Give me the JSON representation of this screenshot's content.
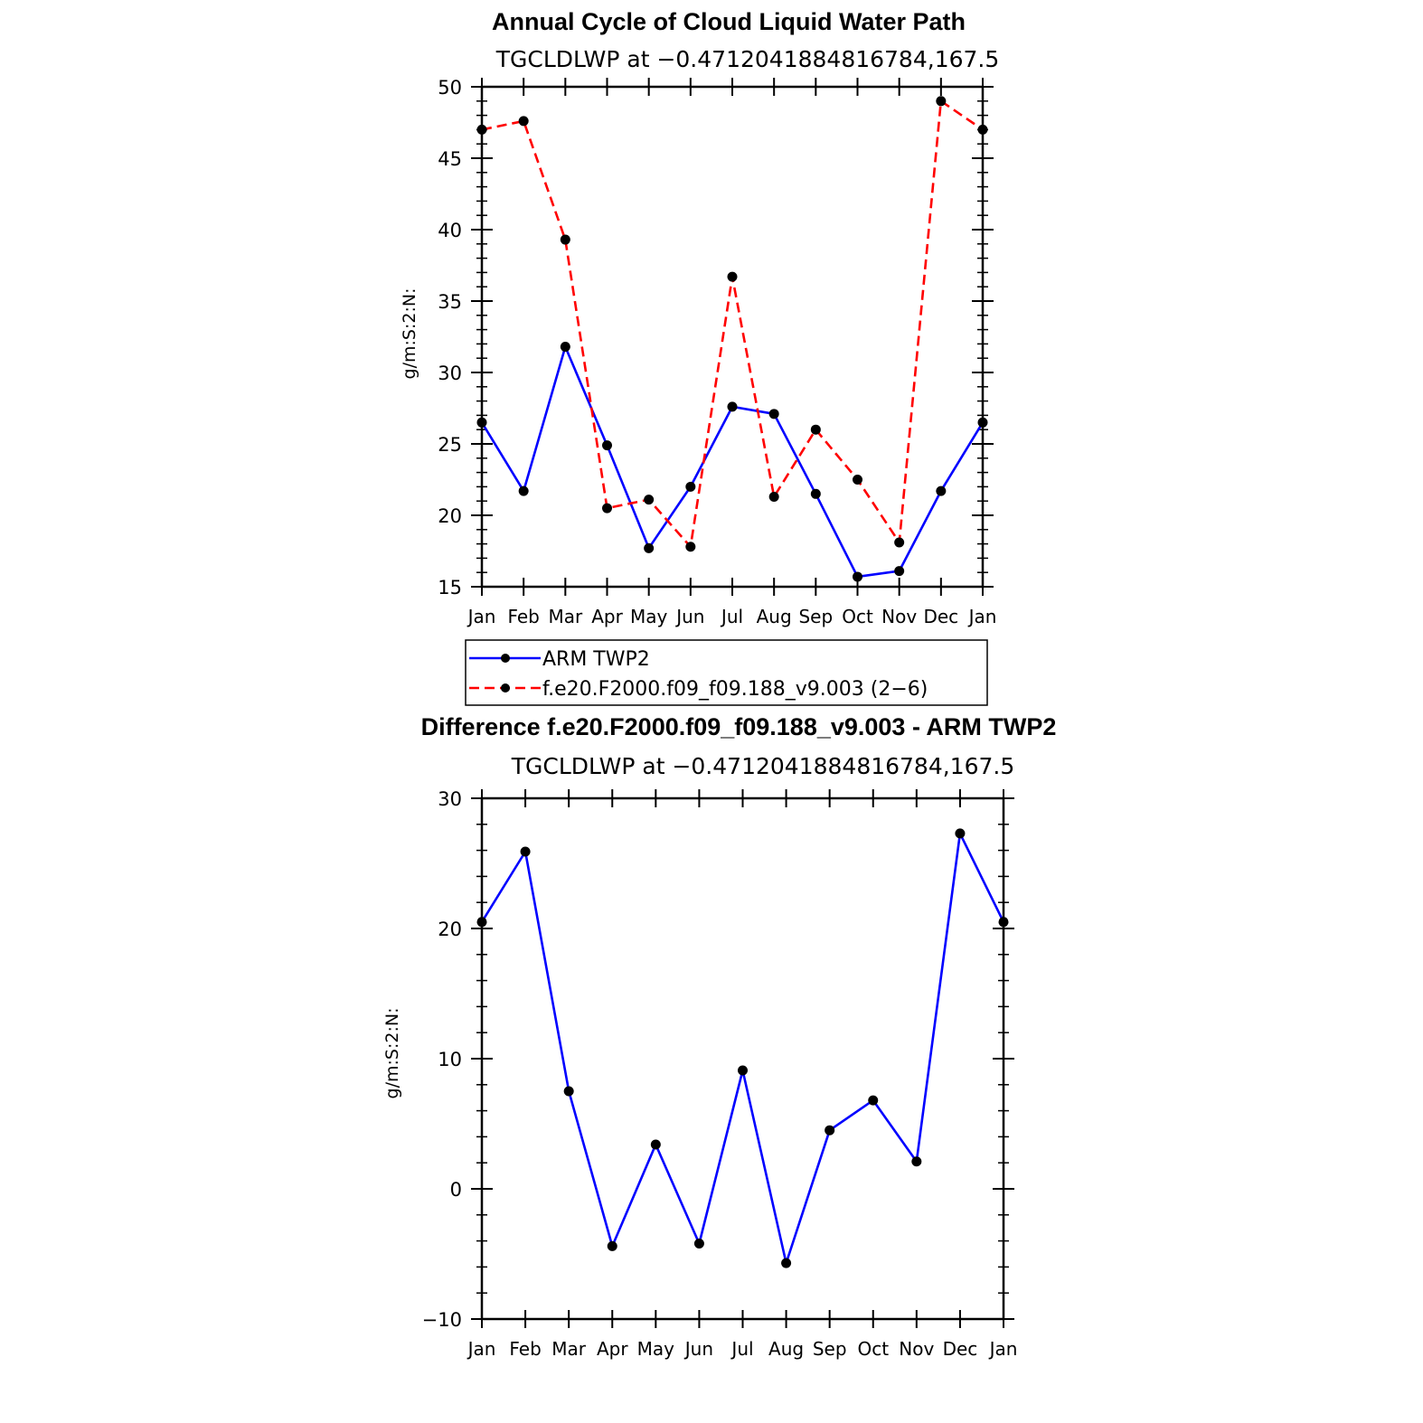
{
  "chart_data": [
    {
      "type": "line",
      "title": "Annual Cycle of Cloud Liquid Water Path",
      "subtitle": "TGCLDLWP at −0.4712041884816784,167.5",
      "ylabel": "g/m:S:2:N:",
      "ylim": [
        15,
        50
      ],
      "yticks": [
        "15",
        "20",
        "25",
        "30",
        "35",
        "40",
        "45",
        "50"
      ],
      "categories": [
        "Jan",
        "Feb",
        "Mar",
        "Apr",
        "May",
        "Jun",
        "Jul",
        "Aug",
        "Sep",
        "Oct",
        "Nov",
        "Dec",
        "Jan"
      ],
      "series": [
        {
          "name": "ARM TWP2",
          "color": "#0000ff",
          "dash": "solid",
          "values": [
            26.5,
            21.7,
            31.8,
            24.9,
            17.7,
            22.0,
            27.6,
            27.1,
            21.5,
            15.7,
            16.1,
            21.7,
            26.5
          ]
        },
        {
          "name": "f.e20.F2000.f09_f09.188_v9.003 (2−6)",
          "color": "#ff0000",
          "dash": "dashed",
          "values": [
            47.0,
            47.6,
            39.3,
            20.5,
            21.1,
            17.8,
            36.7,
            21.3,
            26.0,
            22.5,
            18.1,
            49.0,
            47.0
          ]
        }
      ],
      "legend": "bottom"
    },
    {
      "type": "line",
      "title": "Difference f.e20.F2000.f09_f09.188_v9.003 - ARM TWP2",
      "subtitle": "TGCLDLWP at −0.4712041884816784,167.5",
      "ylabel": "g/m:S:2:N:",
      "ylim": [
        -10,
        30
      ],
      "yticks": [
        "−10",
        "0",
        "10",
        "20",
        "30"
      ],
      "categories": [
        "Jan",
        "Feb",
        "Mar",
        "Apr",
        "May",
        "Jun",
        "Jul",
        "Aug",
        "Sep",
        "Oct",
        "Nov",
        "Dec",
        "Jan"
      ],
      "series": [
        {
          "color": "#0000ff",
          "dash": "solid",
          "values": [
            20.5,
            25.9,
            7.5,
            -4.4,
            3.4,
            -4.2,
            9.1,
            -5.7,
            4.5,
            6.8,
            2.1,
            27.3,
            20.5
          ]
        }
      ]
    }
  ]
}
